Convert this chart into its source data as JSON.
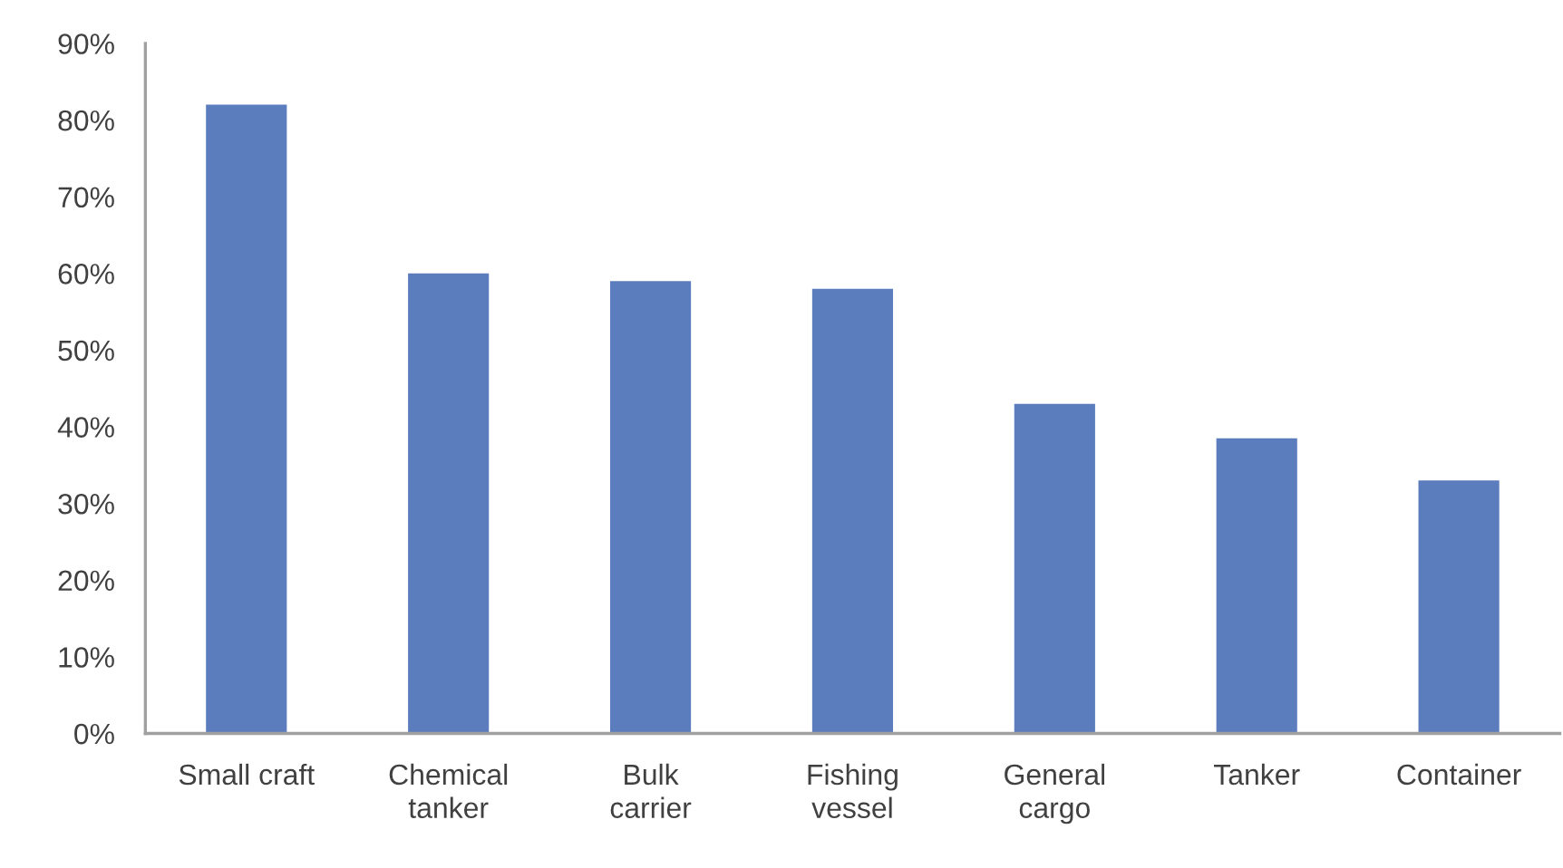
{
  "chart_data": {
    "type": "bar",
    "categories": [
      "Small craft",
      "Chemical\ntanker",
      "Bulk\ncarrier",
      "Fishing\nvessel",
      "General\ncargo",
      "Tanker",
      "Container"
    ],
    "values": [
      82,
      60,
      59,
      58,
      43,
      38.5,
      33
    ],
    "color": "#5b7dbd",
    "ylim": [
      0,
      90
    ],
    "yticks": [
      {
        "value": 0,
        "label": "0%"
      },
      {
        "value": 10,
        "label": "10%"
      },
      {
        "value": 20,
        "label": "20%"
      },
      {
        "value": 30,
        "label": "30%"
      },
      {
        "value": 40,
        "label": "40%"
      },
      {
        "value": 50,
        "label": "50%"
      },
      {
        "value": 60,
        "label": "60%"
      },
      {
        "value": 70,
        "label": "70%"
      },
      {
        "value": 80,
        "label": "80%"
      },
      {
        "value": 90,
        "label": "90%"
      }
    ]
  }
}
